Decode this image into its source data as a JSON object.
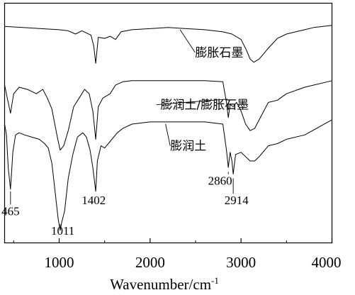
{
  "chart_data": {
    "type": "line",
    "title": "",
    "xlabel": "Wavenumber/cm",
    "xlabel_superscript": "-1",
    "ylabel": "",
    "xlim": [
      400,
      4000
    ],
    "x_ticks": [
      1000,
      2000,
      3000,
      4000
    ],
    "x_tick_labels": [
      "1000",
      "2000",
      "3000",
      "4000"
    ],
    "grid": false,
    "legend": "none",
    "series": [
      {
        "name": "膨胀石墨",
        "x": [
          400,
          600,
          800,
          1000,
          1100,
          1180,
          1250,
          1350,
          1380,
          1402,
          1430,
          1500,
          1560,
          1620,
          1680,
          1800,
          2000,
          2200,
          2400,
          2600,
          2800,
          2900,
          3000,
          3060,
          3100,
          3140,
          3200,
          3300,
          3400,
          3500,
          3600,
          3700,
          3800,
          4000
        ],
        "y": [
          0.95,
          0.945,
          0.94,
          0.935,
          0.93,
          0.915,
          0.93,
          0.91,
          0.86,
          0.78,
          0.9,
          0.895,
          0.905,
          0.89,
          0.925,
          0.935,
          0.94,
          0.945,
          0.94,
          0.935,
          0.925,
          0.915,
          0.89,
          0.84,
          0.8,
          0.785,
          0.8,
          0.85,
          0.895,
          0.915,
          0.925,
          0.935,
          0.945,
          0.955
        ]
      },
      {
        "name": "膨润土/膨胀石墨",
        "x": [
          400,
          430,
          465,
          500,
          560,
          650,
          750,
          820,
          870,
          920,
          980,
          1011,
          1050,
          1100,
          1160,
          1220,
          1280,
          1330,
          1370,
          1402,
          1430,
          1480,
          1560,
          1620,
          1700,
          1800,
          2000,
          2200,
          2400,
          2600,
          2800,
          2840,
          2860,
          2880,
          2914,
          2950,
          3000,
          3050,
          3100,
          3150,
          3200,
          3300,
          3400,
          3500,
          3700,
          4000
        ],
        "y": [
          0.68,
          0.62,
          0.55,
          0.64,
          0.67,
          0.66,
          0.64,
          0.66,
          0.62,
          0.57,
          0.44,
          0.38,
          0.4,
          0.47,
          0.58,
          0.62,
          0.66,
          0.64,
          0.56,
          0.43,
          0.58,
          0.62,
          0.64,
          0.68,
          0.695,
          0.7,
          0.7,
          0.7,
          0.7,
          0.7,
          0.695,
          0.6,
          0.53,
          0.59,
          0.58,
          0.6,
          0.56,
          0.5,
          0.47,
          0.48,
          0.52,
          0.6,
          0.61,
          0.64,
          0.67,
          0.7
        ]
      },
      {
        "name": "膨润土",
        "x": [
          400,
          420,
          440,
          465,
          490,
          520,
          560,
          620,
          700,
          780,
          840,
          880,
          920,
          960,
          990,
          1011,
          1030,
          1060,
          1100,
          1150,
          1200,
          1260,
          1300,
          1340,
          1370,
          1402,
          1420,
          1460,
          1500,
          1560,
          1640,
          1700,
          1800,
          2000,
          2200,
          2400,
          2600,
          2800,
          2840,
          2860,
          2880,
          2900,
          2914,
          2940,
          3000,
          3100,
          3150,
          3200,
          3300,
          3400,
          3500,
          3700,
          4000
        ],
        "y": [
          0.5,
          0.45,
          0.3,
          0.2,
          0.37,
          0.45,
          0.46,
          0.45,
          0.44,
          0.43,
          0.41,
          0.39,
          0.32,
          0.17,
          0.06,
          0.01,
          0.05,
          0.1,
          0.25,
          0.36,
          0.44,
          0.46,
          0.44,
          0.38,
          0.3,
          0.19,
          0.33,
          0.4,
          0.39,
          0.42,
          0.46,
          0.48,
          0.5,
          0.51,
          0.51,
          0.51,
          0.51,
          0.5,
          0.38,
          0.3,
          0.37,
          0.33,
          0.27,
          0.36,
          0.37,
          0.33,
          0.33,
          0.35,
          0.4,
          0.41,
          0.43,
          0.45,
          0.52
        ]
      }
    ],
    "annotations": [
      {
        "text": "膨胀石墨",
        "x": 2760,
        "y": 0.81,
        "arrow_to_x": 2330,
        "arrow_to_y": 0.935
      },
      {
        "text": "膨润土/膨胀石墨",
        "x": 2600,
        "y": 0.57,
        "arrow_to_x": 2850,
        "arrow_to_y": 0.615
      },
      {
        "text": "膨润土",
        "x": 2420,
        "y": 0.38,
        "arrow_to_x": 2170,
        "arrow_to_y": 0.5
      },
      {
        "text": "465",
        "x": 465,
        "y": 0.08,
        "arrow_to_x": 465,
        "arrow_to_y": 0.19
      },
      {
        "text": "1011",
        "x": 1040,
        "y": -0.01,
        "arrow_to_x": 1011,
        "arrow_to_y": 0.015
      },
      {
        "text": "1402",
        "x": 1380,
        "y": 0.13,
        "arrow_to_x": 1402,
        "arrow_to_y": 0.18
      },
      {
        "text": "2860",
        "x": 2770,
        "y": 0.22,
        "arrow_to_x": 2860,
        "arrow_to_y": 0.28
      },
      {
        "text": "2914",
        "x": 2950,
        "y": 0.13,
        "arrow_to_x": 2914,
        "arrow_to_y": 0.25
      }
    ]
  }
}
